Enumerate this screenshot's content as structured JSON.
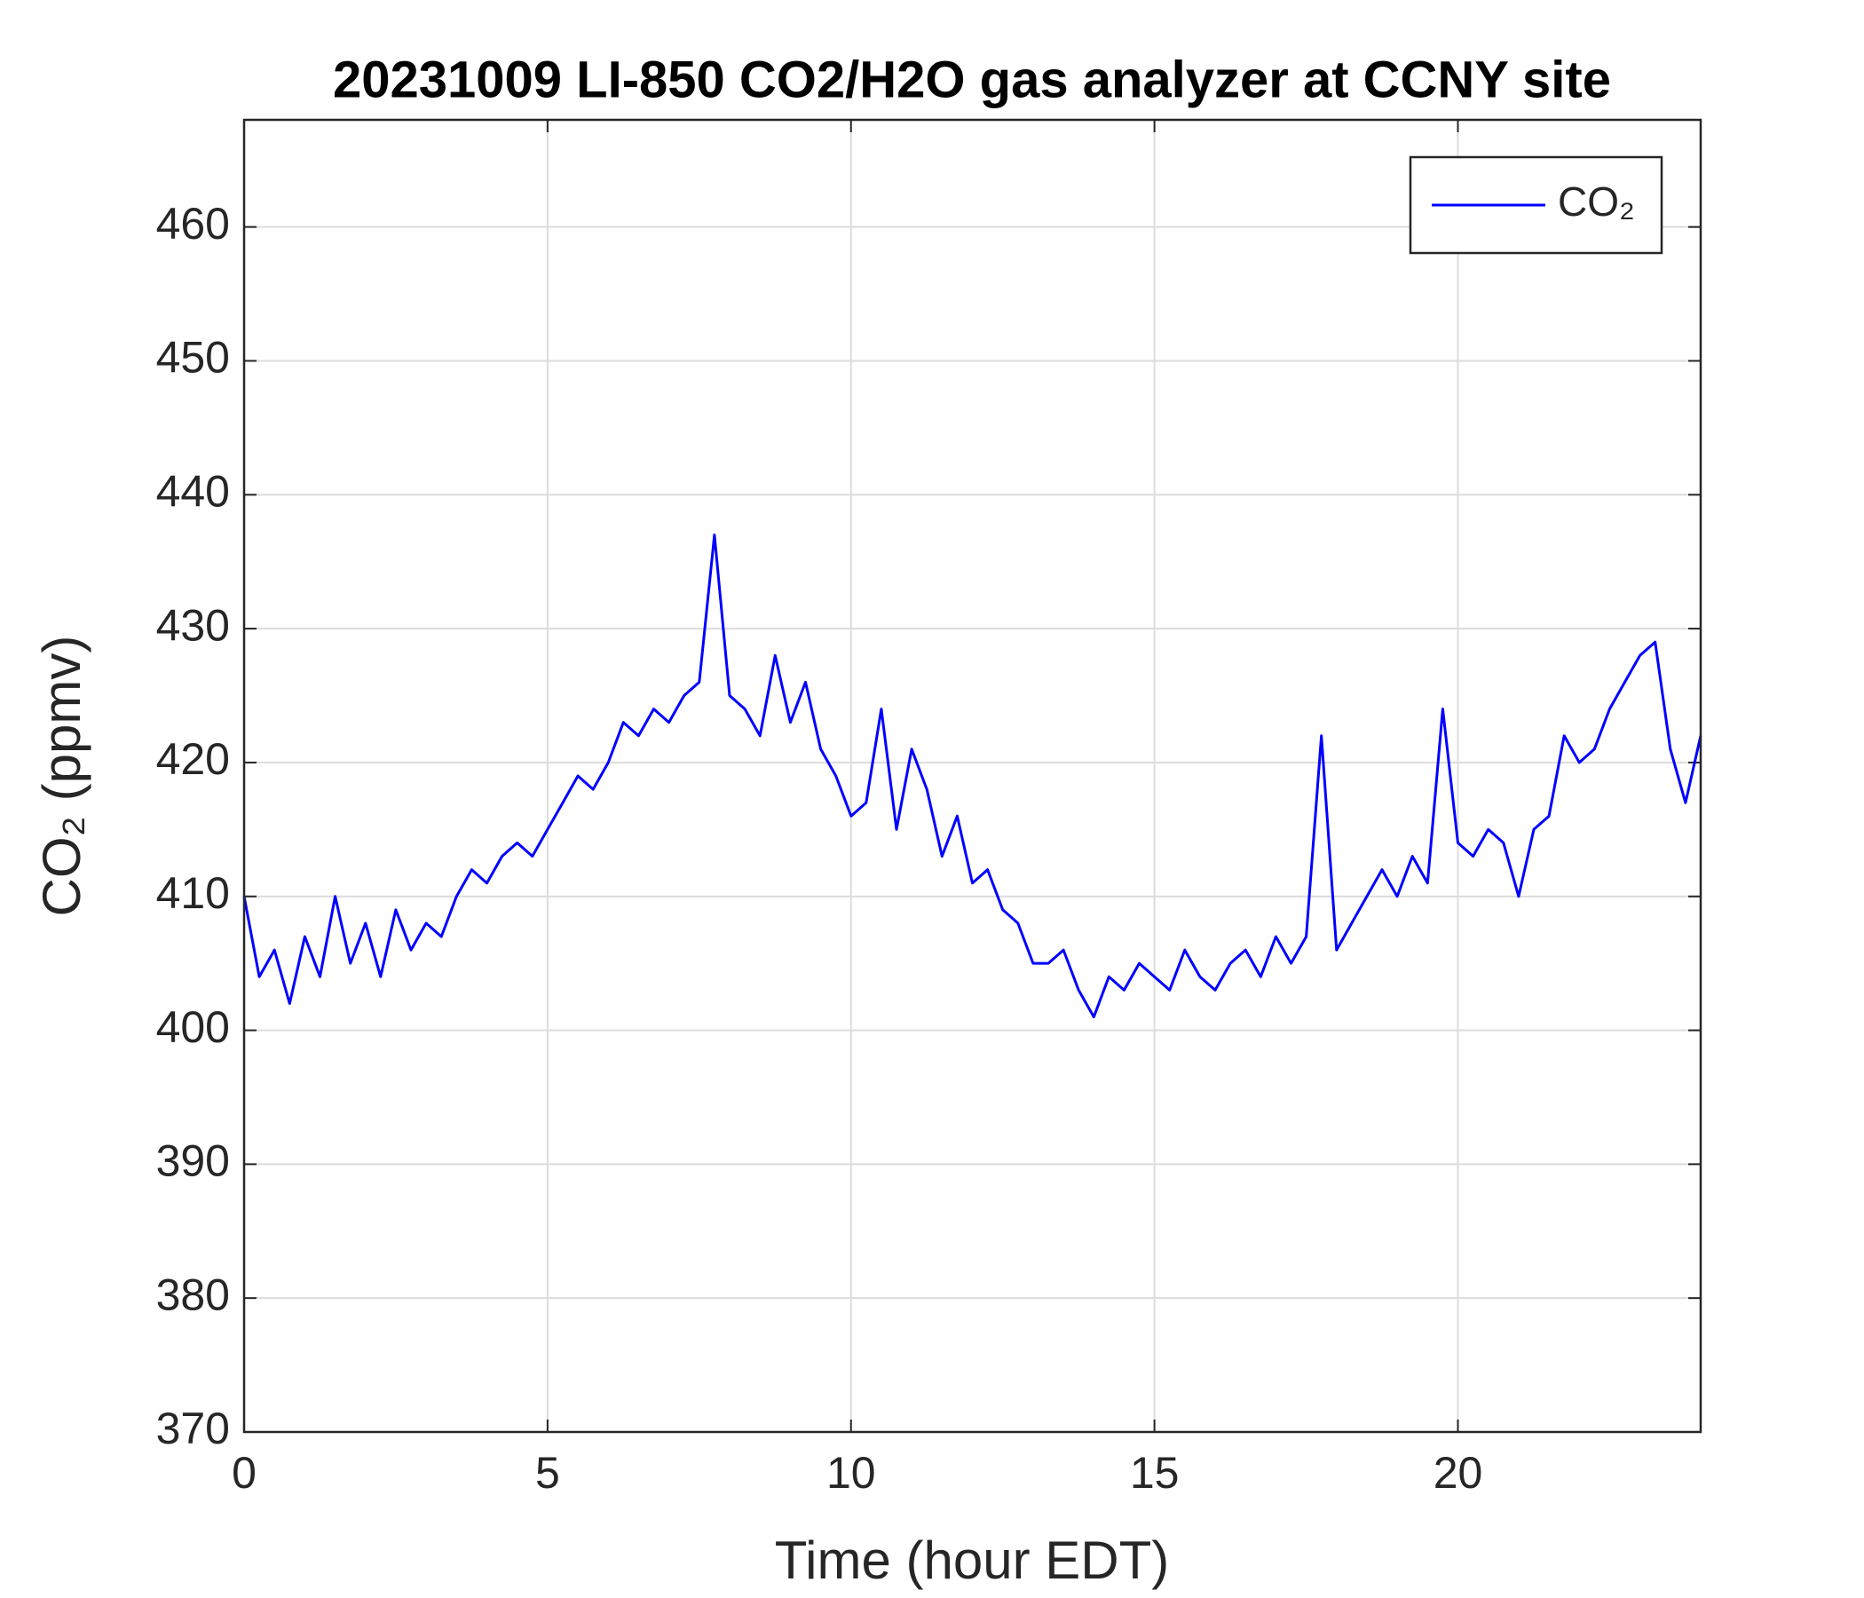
{
  "chart_data": {
    "type": "line",
    "title": "20231009 LI-850 CO2/H2O gas analyzer at CCNY site",
    "x_label": "Time (hour EDT)",
    "y_label": "CO₂ (ppmv)",
    "x": [
      0,
      0.25,
      0.5,
      0.75,
      1,
      1.25,
      1.5,
      1.75,
      2,
      2.25,
      2.5,
      2.75,
      3,
      3.25,
      3.5,
      3.75,
      4,
      4.25,
      4.5,
      4.75,
      5,
      5.25,
      5.5,
      5.75,
      6,
      6.25,
      6.5,
      6.75,
      7,
      7.25,
      7.5,
      7.75,
      8,
      8.25,
      8.5,
      8.75,
      9,
      9.25,
      9.5,
      9.75,
      10,
      10.25,
      10.5,
      10.75,
      11,
      11.25,
      11.5,
      11.75,
      12,
      12.25,
      12.5,
      12.75,
      13,
      13.25,
      13.5,
      13.75,
      14,
      14.25,
      14.5,
      14.75,
      15,
      15.25,
      15.5,
      15.75,
      16,
      16.25,
      16.5,
      16.75,
      17,
      17.25,
      17.5,
      17.75,
      18,
      18.25,
      18.5,
      18.75,
      19,
      19.25,
      19.5,
      19.75,
      20,
      20.25,
      20.5,
      20.75,
      21,
      21.25,
      21.5,
      21.75,
      22,
      22.25,
      22.5,
      22.75,
      23,
      23.25,
      23.5,
      23.75,
      24
    ],
    "series": [
      {
        "name": "CO₂",
        "color": "#0000ff",
        "values": [
          410,
          404,
          406,
          402,
          407,
          404,
          410,
          405,
          408,
          404,
          409,
          406,
          408,
          407,
          410,
          412,
          411,
          413,
          414,
          413,
          415,
          417,
          419,
          418,
          420,
          423,
          422,
          424,
          423,
          425,
          426,
          437,
          425,
          424,
          422,
          428,
          423,
          426,
          421,
          419,
          416,
          417,
          424,
          415,
          421,
          418,
          413,
          416,
          411,
          412,
          409,
          408,
          405,
          405,
          406,
          403,
          401,
          404,
          403,
          405,
          404,
          403,
          406,
          404,
          403,
          405,
          406,
          404,
          407,
          405,
          407,
          422,
          406,
          408,
          410,
          412,
          410,
          413,
          411,
          424,
          414,
          413,
          415,
          414,
          410,
          415,
          416,
          422,
          420,
          421,
          424,
          426,
          428,
          429,
          421,
          417,
          422
        ]
      }
    ],
    "xlim": [
      0,
      24
    ],
    "xticks": [
      0,
      5,
      10,
      15,
      20
    ],
    "ylim": [
      370,
      468
    ],
    "yticks": [
      370,
      380,
      390,
      400,
      410,
      420,
      430,
      440,
      450,
      460
    ],
    "grid": true,
    "legend": "upper right"
  }
}
